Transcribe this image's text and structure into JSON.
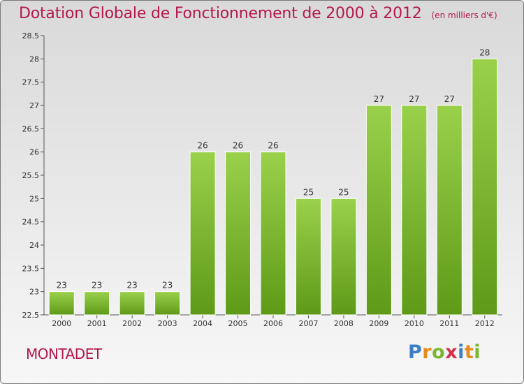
{
  "chart_data": {
    "type": "bar",
    "title": "Dotation Globale de Fonctionnement de 2000 à 2012",
    "unit_label": "(en milliers d'€)",
    "categories": [
      "2000",
      "2001",
      "2002",
      "2003",
      "2004",
      "2005",
      "2006",
      "2007",
      "2008",
      "2009",
      "2010",
      "2011",
      "2012"
    ],
    "values": [
      23,
      23,
      23,
      23,
      26,
      26,
      26,
      25,
      25,
      27,
      27,
      27,
      28
    ],
    "ylim": [
      22.5,
      28.5
    ],
    "yticks": [
      "22.5",
      "23",
      "23.5",
      "24",
      "24.5",
      "25",
      "25.5",
      "26",
      "26.5",
      "27",
      "27.5",
      "28",
      "28.5"
    ],
    "grid": false,
    "bar_color_top": "#9ad14b",
    "bar_color_bottom": "#5e9a18"
  },
  "footer": {
    "commune": "MONTADET",
    "logo_letters": [
      {
        "ch": "P",
        "color": "#3b7fc4"
      },
      {
        "ch": "r",
        "color": "#e98b1c"
      },
      {
        "ch": "o",
        "color": "#7ab730"
      },
      {
        "ch": "x",
        "color": "#d5304e"
      },
      {
        "ch": "i",
        "color": "#3b7fc4"
      },
      {
        "ch": "t",
        "color": "#e98b1c"
      },
      {
        "ch": "i",
        "color": "#7ab730"
      }
    ]
  }
}
